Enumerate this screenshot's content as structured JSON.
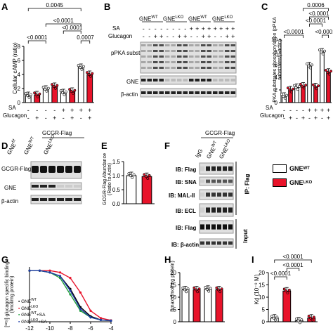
{
  "panels": {
    "A": {
      "label": "A",
      "ylabel": "Cellular cAMP (ratio)",
      "yticks": [
        "0",
        "2",
        "4",
        "6",
        "8"
      ],
      "sig": [
        "0.0045",
        "<0.0001",
        "<0.0001",
        "<0.0001",
        "0.0007"
      ],
      "row_labels": {
        "sa": "SA",
        "glucagon": "Glucagon"
      },
      "sa_signs": [
        "-",
        "-",
        "-",
        "-",
        "+",
        "+",
        "+",
        "+"
      ],
      "glu_signs": [
        "-",
        "+",
        "-",
        "+",
        "-",
        "+",
        "-",
        "+"
      ]
    },
    "B": {
      "label": "B",
      "headers": [
        "GNE",
        "GNE",
        "GNE",
        "GNE"
      ],
      "header_sup": [
        "WT",
        "LKO",
        "WT",
        "LKO"
      ],
      "row_labels": {
        "sa": "SA",
        "glucagon": "Glucagon"
      },
      "sa_signs": [
        "-",
        "-",
        "-",
        "-",
        "-",
        "-",
        "-",
        "-",
        "+",
        "+",
        "+",
        "+",
        "+",
        "+",
        "+",
        "+"
      ],
      "glu_signs": [
        "-",
        "-",
        "+",
        "+",
        "-",
        "-",
        "+",
        "+",
        "-",
        "-",
        "+",
        "+",
        "-",
        "-",
        "+",
        "+"
      ],
      "blots": [
        "pPKA substrates",
        "GNE",
        "β-actin"
      ]
    },
    "C": {
      "label": "C",
      "ylabel": "PKA substrates phosphorylation (pPKA substrates/β-actin)",
      "yticks": [
        "0",
        "2",
        "4",
        "6",
        "8",
        "10"
      ],
      "sig": [
        "0.0006",
        "<0.0001",
        "<0.0001",
        "<0.0001",
        "<0.0001"
      ],
      "row_labels": {
        "sa": "SA",
        "glucagon": "Glucagon"
      },
      "sa_signs": [
        "-",
        "-",
        "-",
        "-",
        "+",
        "+",
        "+",
        "+"
      ],
      "glu_signs": [
        "-",
        "+",
        "-",
        "+",
        "-",
        "+",
        "-",
        "+"
      ]
    },
    "D": {
      "label": "D",
      "header": "GCGR-Flag",
      "col_wt": "GNE",
      "col_wt_sup": "WT",
      "col_lko": "GNE",
      "col_lko_sup": "LKO",
      "col_ctrl": "GNE",
      "col_ctrl_sup": "f/f",
      "blots": [
        "GCGR-Flag",
        "GNE",
        "β-actin"
      ]
    },
    "E": {
      "label": "E",
      "ylabel": "GCGR-Flag Abundance (Ratio to Actin)",
      "yticks": [
        "0.0",
        "0.5",
        "1.0",
        "1.5"
      ]
    },
    "F": {
      "label": "F",
      "header": "GCGR-Flag",
      "cols": [
        "IgG",
        "GNE",
        "GNE"
      ],
      "col_sups": [
        "",
        "WT",
        "LKO"
      ],
      "blots": [
        "IB: Flag",
        "IB: SNA",
        "IB: MAL-II",
        "IB: ECL",
        "IB: Flag",
        "IB: β-actin"
      ],
      "brackets": [
        "IP: Flag",
        "Input"
      ]
    },
    "legend": {
      "items": [
        {
          "label": "GNE",
          "sup": "WT",
          "color": "#ffffff"
        },
        {
          "label": "GNE",
          "sup": "LKO",
          "color": "#e8132a"
        }
      ]
    },
    "G": {
      "label": "G",
      "ylabel": "[¹²⁵I] glucagon specific binding (fmol/mg protein)",
      "xticks": [
        "-12",
        "-10",
        "-8",
        "-6",
        "-4"
      ],
      "legend": [
        {
          "label": "GNE",
          "sup": "WT",
          "color": "#000000"
        },
        {
          "label": "GNE",
          "sup": "LKO",
          "color": "#e8132a"
        },
        {
          "label": "GNE",
          "sup": "WT",
          "suffix": "+SA",
          "color": "#1f9e3a"
        },
        {
          "label": "GNE",
          "sup": "LKO",
          "suffix": "+SA",
          "color": "#1f3ea8"
        }
      ]
    },
    "H": {
      "label": "H",
      "ylabel": "Bmax (fmol/mg protein)",
      "yticks": [
        "0",
        "5",
        "10",
        "15",
        "20"
      ]
    },
    "I": {
      "label": "I",
      "ylabel": "Kd (10⁻⁹ M)",
      "yticks": [
        "0",
        "5",
        "10",
        "15",
        "20"
      ],
      "sig": [
        "<0.0001",
        "<0.0001",
        "<0.0001"
      ]
    }
  },
  "chart_data": [
    {
      "panel": "A",
      "type": "bar",
      "ylabel": "Cellular cAMP (ratio)",
      "ylim": [
        0,
        8
      ],
      "groups": [
        "GNE WT",
        "GNE LKO",
        "GNE WT",
        "GNE LKO",
        "GNE WT",
        "GNE LKO",
        "GNE WT",
        "GNE LKO"
      ],
      "values": [
        1.0,
        1.1,
        1.9,
        2.3,
        1.4,
        1.6,
        5.0,
        4.0
      ],
      "colors": [
        "#ffffff",
        "#e8132a",
        "#ffffff",
        "#e8132a",
        "#ffffff",
        "#e8132a",
        "#ffffff",
        "#e8132a"
      ]
    },
    {
      "panel": "C",
      "type": "bar",
      "ylabel": "PKA substrates phosphorylation (pPKA substrates/β-actin)",
      "ylim": [
        0,
        10
      ],
      "values": [
        1.0,
        2.0,
        2.4,
        2.6,
        5.8,
        2.5,
        8.0,
        4.8
      ],
      "colors": [
        "#ffffff",
        "#e8132a",
        "#ffffff",
        "#e8132a",
        "#ffffff",
        "#e8132a",
        "#ffffff",
        "#e8132a"
      ]
    },
    {
      "panel": "E",
      "type": "bar",
      "ylabel": "GCGR-Flag Abundance (Ratio to Actin)",
      "ylim": [
        0,
        1.5
      ],
      "values": [
        1.0,
        0.97
      ],
      "colors": [
        "#ffffff",
        "#e8132a"
      ]
    },
    {
      "panel": "H",
      "type": "bar",
      "ylabel": "Bmax (fmol/mg protein)",
      "ylim": [
        0,
        20
      ],
      "values": [
        13.0,
        13.0,
        13.2,
        13.0
      ],
      "colors": [
        "#ffffff",
        "#e8132a",
        "#ffffff",
        "#e8132a"
      ]
    },
    {
      "panel": "I",
      "type": "bar",
      "ylabel": "Kd (10⁻⁹ M)",
      "ylim": [
        0,
        20
      ],
      "values": [
        1.5,
        12.5,
        0.4,
        1.5
      ],
      "colors": [
        "#ffffff",
        "#e8132a",
        "#ffffff",
        "#e8132a"
      ]
    },
    {
      "panel": "G",
      "type": "line",
      "xlim": [
        -12,
        -4
      ],
      "ylim": [
        0,
        15
      ],
      "series": [
        {
          "name": "GNE WT",
          "color": "#000000",
          "x": [
            -12,
            -11,
            -10,
            -9,
            -8,
            -7,
            -6,
            -5,
            -4
          ],
          "y": [
            14,
            14,
            13.5,
            12.5,
            9,
            4,
            1.5,
            0.5,
            0.3
          ]
        },
        {
          "name": "GNE LKO",
          "color": "#e8132a",
          "x": [
            -12,
            -11,
            -10,
            -9,
            -8,
            -7,
            -6,
            -5,
            -4
          ],
          "y": [
            14,
            14,
            14,
            13.5,
            12,
            8,
            3,
            1,
            0.4
          ]
        },
        {
          "name": "GNE WT+SA",
          "color": "#1f9e3a",
          "x": [
            -12,
            -11,
            -10,
            -9,
            -8,
            -7,
            -6,
            -5,
            -4
          ],
          "y": [
            14,
            14,
            13.5,
            12,
            7.5,
            3,
            1.2,
            0.5,
            0.3
          ]
        },
        {
          "name": "GNE LKO+SA",
          "color": "#1f3ea8",
          "x": [
            -12,
            -11,
            -10,
            -9,
            -8,
            -7,
            -6,
            -5,
            -4
          ],
          "y": [
            14,
            14,
            13.5,
            12.5,
            8.5,
            3.5,
            1.2,
            0.5,
            0.3
          ]
        }
      ]
    }
  ]
}
